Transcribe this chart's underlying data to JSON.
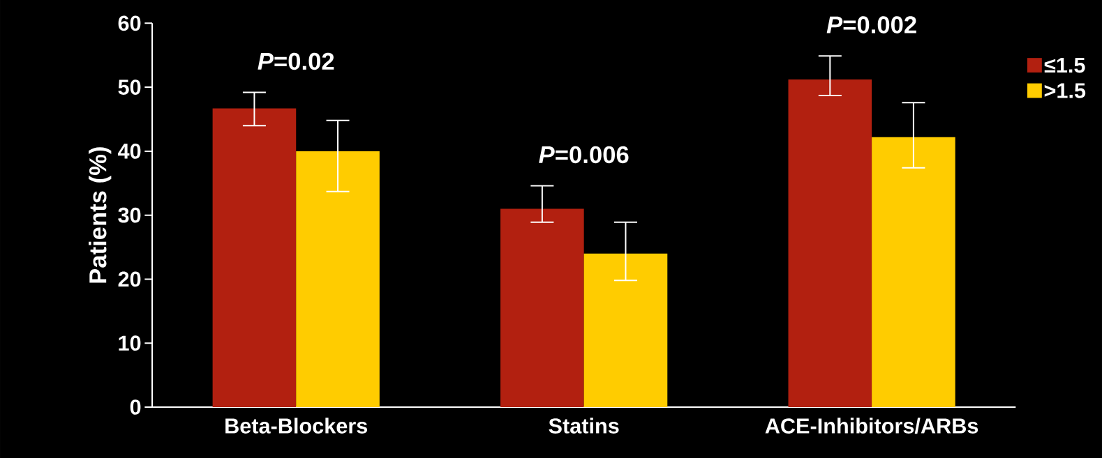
{
  "chart_data": {
    "type": "bar",
    "ylabel": "Patients (%)",
    "categories": [
      "Beta-Blockers",
      "Statins",
      "ACE-Inhibitors/ARBs"
    ],
    "series": [
      {
        "name": "≤1.5",
        "color": "#b22010",
        "values": [
          46.7,
          31,
          51.2
        ],
        "errors": [
          [
            44,
            49.2
          ],
          [
            28.9,
            34.6
          ],
          [
            48.7,
            54.9
          ]
        ]
      },
      {
        "name": ">1.5",
        "color": "#ffcc00",
        "values": [
          40,
          24,
          42.2
        ],
        "errors": [
          [
            33.7,
            44.8
          ],
          [
            19.8,
            28.9
          ],
          [
            37.4,
            47.6
          ]
        ]
      }
    ],
    "ylim": [
      0,
      60
    ],
    "yticks": [
      0,
      10,
      20,
      30,
      40,
      50,
      60
    ],
    "legend": "top right",
    "grid": false,
    "annotations": [
      "*P*=0.02",
      "*P*=0.006",
      "*P*=0.002"
    ]
  }
}
